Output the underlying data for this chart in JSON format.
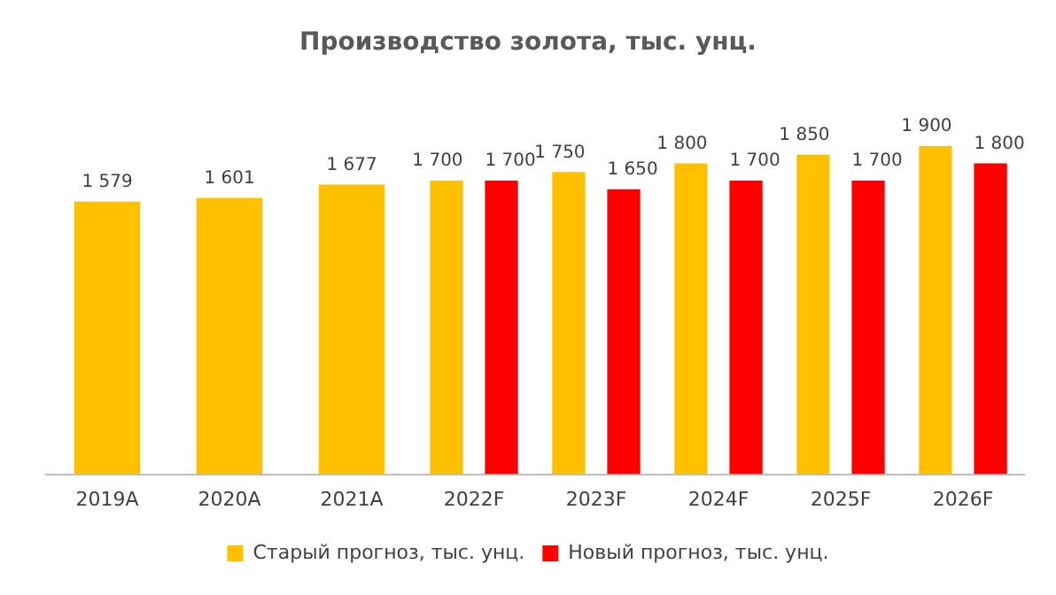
{
  "chart_data": {
    "type": "bar",
    "title": "Производство золота, тыс. унц.",
    "categories": [
      "2019A",
      "2020A",
      "2021A",
      "2022F",
      "2023F",
      "2024F",
      "2025F",
      "2026F"
    ],
    "series": [
      {
        "name": "Старый прогноз, тыс. унц.",
        "color": "#ffc000",
        "values": [
          1579,
          1601,
          1677,
          1700,
          1750,
          1800,
          1850,
          1900
        ],
        "value_labels": [
          "1 579",
          "1 601",
          "1 677",
          "1 700",
          "1 750",
          "1 800",
          "1 850",
          "1 900"
        ]
      },
      {
        "name": "Новый прогноз, тыс. унц.",
        "color": "#ff0000",
        "values": [
          null,
          null,
          null,
          1700,
          1650,
          1700,
          1700,
          1800
        ],
        "value_labels": [
          null,
          null,
          null,
          "1 700",
          "1 650",
          "1 700",
          "1 700",
          "1 800"
        ]
      }
    ],
    "tick_labels": "x",
    "grid": false,
    "legend": "bottom"
  }
}
